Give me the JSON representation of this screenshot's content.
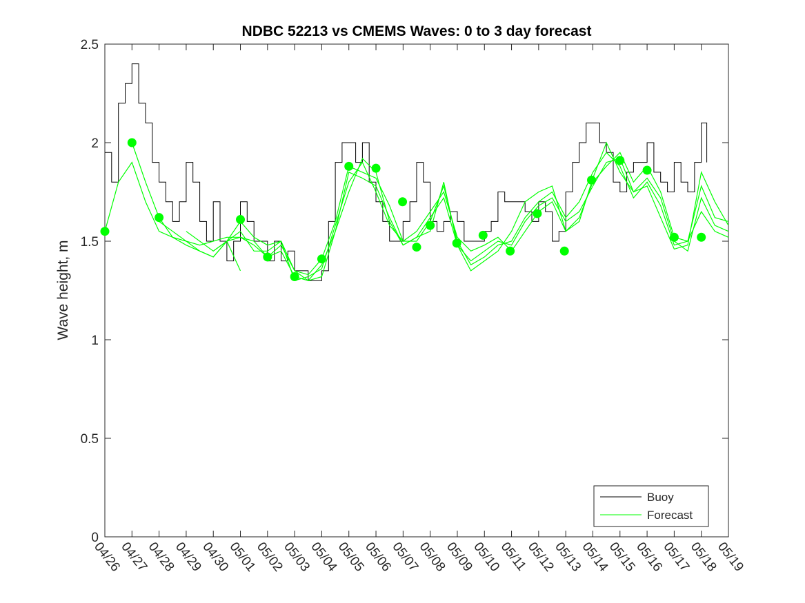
{
  "chart_data": {
    "type": "line",
    "title": "NDBC 52213 vs CMEMS Waves: 0 to 3 day forecast",
    "xlabel": "",
    "ylabel": "Wave height, m",
    "x_tick_labels": [
      "04/26",
      "04/27",
      "04/28",
      "04/29",
      "04/30",
      "05/01",
      "05/02",
      "05/03",
      "05/04",
      "05/05",
      "05/06",
      "05/07",
      "05/08",
      "05/09",
      "05/10",
      "05/11",
      "05/12",
      "05/13",
      "05/14",
      "05/15",
      "05/16",
      "05/17",
      "05/18",
      "05/19"
    ],
    "y_tick_labels": [
      "0",
      "0.5",
      "1",
      "1.5",
      "2",
      "2.5"
    ],
    "x_range_days": [
      0,
      23
    ],
    "ylim": [
      0,
      2.5
    ],
    "grid": false,
    "legend": {
      "placement": "bottom-right",
      "entries": [
        "Buoy",
        "Forecast"
      ]
    },
    "colors": {
      "buoy": "#000000",
      "forecast": "#00ff00",
      "axes": "#262626"
    },
    "series": [
      {
        "name": "Buoy",
        "note_x_unit": "days since 04/26",
        "x": [
          0,
          0.25,
          0.5,
          0.75,
          1,
          1.25,
          1.5,
          1.75,
          2,
          2.25,
          2.5,
          2.75,
          3,
          3.25,
          3.5,
          3.75,
          4,
          4.25,
          4.5,
          4.75,
          5,
          5.25,
          5.5,
          5.75,
          6,
          6.25,
          6.5,
          6.75,
          7,
          7.25,
          7.5,
          7.75,
          8,
          8.25,
          8.5,
          8.75,
          9,
          9.25,
          9.5,
          9.75,
          10,
          10.25,
          10.5,
          10.75,
          11,
          11.25,
          11.5,
          11.75,
          12,
          12.25,
          12.5,
          12.75,
          13,
          13.25,
          13.5,
          13.75,
          14,
          14.25,
          14.5,
          14.75,
          15,
          15.25,
          15.5,
          15.75,
          16,
          16.25,
          16.5,
          16.75,
          17,
          17.25,
          17.5,
          17.75,
          18,
          18.25,
          18.5,
          18.75,
          19,
          19.25,
          19.5,
          19.75,
          20,
          20.25,
          20.5,
          20.75,
          21,
          21.25,
          21.5,
          21.75,
          22,
          22.2
        ],
        "y": [
          1.95,
          1.8,
          2.2,
          2.3,
          2.4,
          2.2,
          2.1,
          1.9,
          1.8,
          1.7,
          1.6,
          1.7,
          1.9,
          1.8,
          1.6,
          1.5,
          1.7,
          1.5,
          1.4,
          1.5,
          1.7,
          1.6,
          1.5,
          1.5,
          1.4,
          1.5,
          1.4,
          1.45,
          1.35,
          1.35,
          1.3,
          1.3,
          1.35,
          1.6,
          1.9,
          2.0,
          2.0,
          1.9,
          2.0,
          1.8,
          1.7,
          1.6,
          1.5,
          1.5,
          1.6,
          1.7,
          1.9,
          1.8,
          1.6,
          1.55,
          1.6,
          1.65,
          1.6,
          1.5,
          1.5,
          1.5,
          1.55,
          1.6,
          1.75,
          1.7,
          1.7,
          1.7,
          1.65,
          1.6,
          1.7,
          1.65,
          1.5,
          1.55,
          1.75,
          1.9,
          2.0,
          2.1,
          2.1,
          2.0,
          1.95,
          1.8,
          1.75,
          1.85,
          1.9,
          1.9,
          2.0,
          1.85,
          1.8,
          1.75,
          1.9,
          1.8,
          1.75,
          1.9,
          2.1,
          1.9
        ]
      },
      {
        "name": "Forecast",
        "runs": [
          {
            "x": [
              0,
              0.5,
              1,
              1.5,
              2,
              2.5,
              3,
              3.5,
              4,
              4.5,
              5
            ],
            "y": [
              1.55,
              1.8,
              1.9,
              1.7,
              1.55,
              1.52,
              1.48,
              1.45,
              1.42,
              1.5,
              1.35
            ]
          },
          {
            "x": [
              1,
              1.5,
              2,
              2.5,
              3,
              3.5,
              4,
              4.5,
              5,
              5.5,
              6,
              6.5,
              7,
              7.5,
              8,
              8.5,
              9,
              9.5,
              10,
              10.5,
              11,
              11.5,
              12,
              12.5,
              13,
              13.5,
              14,
              14.5,
              15,
              15.5,
              16,
              16.5,
              17,
              17.5,
              18,
              18.5,
              19,
              19.5,
              20,
              20.5,
              21,
              21.5,
              22,
              22.5,
              23
            ],
            "y": [
              2.0,
              1.8,
              1.62,
              1.52,
              1.5,
              1.45,
              1.42,
              1.5,
              1.6,
              1.52,
              1.48,
              1.5,
              1.35,
              1.33,
              1.41,
              1.6,
              1.88,
              1.85,
              1.82,
              1.68,
              1.5,
              1.55,
              1.65,
              1.75,
              1.52,
              1.45,
              1.48,
              1.52,
              1.45,
              1.55,
              1.65,
              1.7,
              1.55,
              1.62,
              1.8,
              1.88,
              1.95,
              1.8,
              1.88,
              1.75,
              1.52,
              1.5,
              1.78,
              1.62,
              1.6
            ]
          },
          {
            "x": [
              2,
              2.5,
              3,
              3.5,
              4,
              4.5,
              5,
              5.5,
              6,
              6.5,
              7,
              7.5,
              8,
              8.5,
              9,
              9.5,
              10,
              10.5,
              11,
              11.5,
              12,
              12.5,
              13,
              13.5,
              14,
              14.5,
              15,
              15.5,
              16,
              16.5,
              17,
              17.5,
              18,
              18.5,
              19,
              19.5,
              20,
              20.5,
              21,
              21.5,
              22,
              22.5,
              23
            ],
            "y": [
              1.6,
              1.55,
              1.5,
              1.48,
              1.5,
              1.52,
              1.52,
              1.48,
              1.42,
              1.45,
              1.32,
              1.3,
              1.38,
              1.55,
              1.85,
              1.82,
              1.78,
              1.62,
              1.48,
              1.52,
              1.62,
              1.72,
              1.48,
              1.4,
              1.45,
              1.5,
              1.48,
              1.6,
              1.68,
              1.72,
              1.6,
              1.65,
              1.78,
              1.9,
              1.92,
              1.75,
              1.82,
              1.72,
              1.5,
              1.45,
              1.72,
              1.58,
              1.55
            ]
          },
          {
            "x": [
              3,
              3.5,
              4,
              4.5,
              5,
              5.5,
              6,
              6.5,
              7,
              7.5,
              8,
              8.5,
              9,
              9.5,
              10,
              10.5,
              11,
              11.5,
              12,
              12.5,
              13,
              13.5,
              14,
              14.5,
              15,
              15.5,
              16,
              16.5,
              17,
              17.5,
              18,
              18.5,
              19,
              19.5,
              20,
              20.5,
              21,
              21.5,
              22,
              22.5,
              23
            ],
            "y": [
              1.55,
              1.5,
              1.45,
              1.5,
              1.55,
              1.45,
              1.45,
              1.5,
              1.3,
              1.32,
              1.36,
              1.58,
              1.8,
              1.9,
              1.75,
              1.58,
              1.5,
              1.5,
              1.6,
              1.78,
              1.5,
              1.38,
              1.42,
              1.48,
              1.5,
              1.62,
              1.7,
              1.75,
              1.62,
              1.7,
              1.85,
              1.95,
              1.88,
              1.72,
              1.8,
              1.68,
              1.48,
              1.5,
              1.65,
              1.55,
              1.52
            ]
          },
          {
            "x": [
              4,
              4.5,
              5,
              5.5,
              6,
              6.5,
              7,
              7.5,
              8,
              8.5,
              9,
              9.5,
              10,
              10.5,
              11,
              11.5,
              12,
              12.5,
              13,
              13.5,
              14,
              14.5,
              15,
              15.5,
              16,
              16.5,
              17,
              17.5,
              18,
              18.5,
              19,
              19.5,
              20,
              20.5,
              21,
              21.5,
              22,
              22.5,
              23
            ],
            "y": [
              1.45,
              1.5,
              1.52,
              1.5,
              1.42,
              1.48,
              1.35,
              1.3,
              1.32,
              1.55,
              1.75,
              1.92,
              1.85,
              1.6,
              1.48,
              1.52,
              1.55,
              1.8,
              1.48,
              1.35,
              1.4,
              1.45,
              1.55,
              1.7,
              1.75,
              1.78,
              1.55,
              1.6,
              1.82,
              2.0,
              1.85,
              1.75,
              1.78,
              1.62,
              1.46,
              1.48,
              1.85,
              1.7,
              1.58
            ]
          }
        ],
        "markers": {
          "x": [
            0,
            1,
            2,
            5,
            6,
            7,
            8,
            9,
            10,
            10.98,
            11.5,
            12,
            12.98,
            13.95,
            14.95,
            15.95,
            16.95,
            17.95,
            19,
            20,
            21,
            22
          ],
          "y": [
            1.55,
            2.0,
            1.62,
            1.61,
            1.42,
            1.32,
            1.41,
            1.88,
            1.87,
            1.7,
            1.47,
            1.58,
            1.49,
            1.53,
            1.45,
            1.64,
            1.45,
            1.81,
            1.91,
            1.86,
            1.52,
            1.52
          ]
        }
      }
    ]
  }
}
